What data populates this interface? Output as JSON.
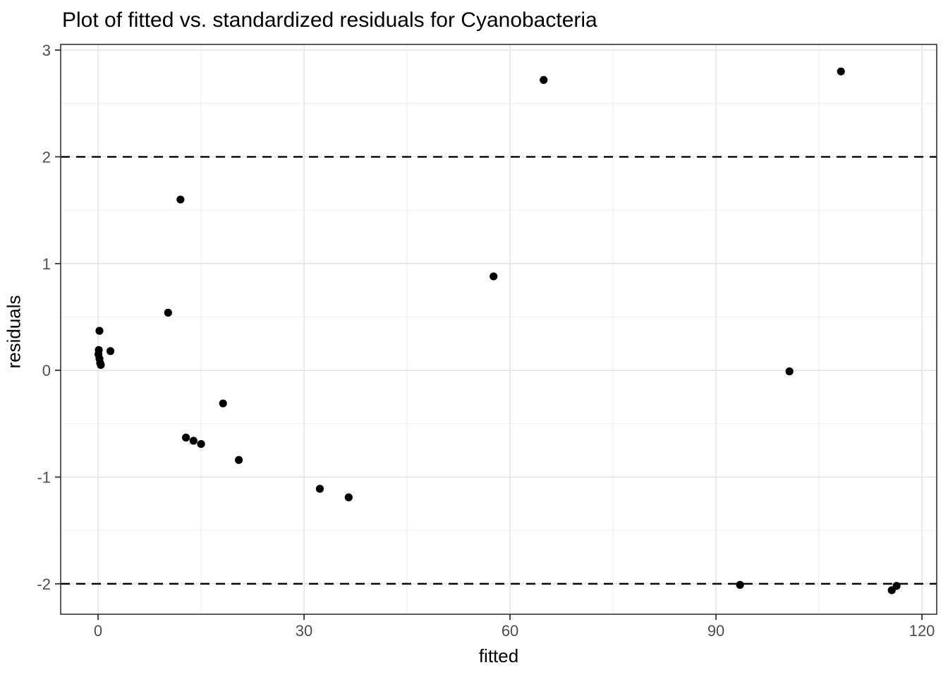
{
  "title": "Plot of fitted vs. standardized residuals for Cyanobacteria",
  "colors": {
    "background": "#ffffff",
    "panel_border": "#333333",
    "grid_major": "#e2e2e2",
    "grid_minor": "#efefef",
    "tick_mark": "#333333",
    "tick_label": "#4d4d4d",
    "axis_title": "#000000",
    "point": "#000000",
    "reference_line": "#000000"
  },
  "chart_data": {
    "type": "scatter",
    "title": "Plot of fitted vs. standardized residuals for Cyanobacteria",
    "xlabel": "fitted",
    "ylabel": "residuals",
    "xlim": [
      -5.45,
      122.15
    ],
    "ylim": [
      -2.285,
      3.053
    ],
    "x_ticks": [
      0,
      30,
      60,
      90,
      120
    ],
    "y_ticks": [
      -2,
      -1,
      0,
      1,
      2,
      3
    ],
    "x_minor_gridlines": [
      15,
      45,
      75,
      105
    ],
    "y_minor_gridlines": [
      -1.5,
      -0.5,
      0.5,
      1.5,
      2.5
    ],
    "grid": "major+minor",
    "legend": "none",
    "reference_lines": [
      {
        "y": 2,
        "style": "dashed"
      },
      {
        "y": -2,
        "style": "dashed"
      }
    ],
    "points": [
      [
        0.05,
        0.15
      ],
      [
        0.1,
        0.19
      ],
      [
        0.2,
        0.11
      ],
      [
        0.3,
        0.07
      ],
      [
        0.4,
        0.05
      ],
      [
        0.2,
        0.37
      ],
      [
        1.8,
        0.18
      ],
      [
        10.2,
        0.54
      ],
      [
        12.0,
        1.6
      ],
      [
        12.8,
        -0.63
      ],
      [
        13.9,
        -0.66
      ],
      [
        15.0,
        -0.69
      ],
      [
        18.2,
        -0.31
      ],
      [
        20.5,
        -0.84
      ],
      [
        32.3,
        -1.11
      ],
      [
        36.5,
        -1.19
      ],
      [
        57.6,
        0.88
      ],
      [
        64.9,
        2.72
      ],
      [
        93.5,
        -2.01
      ],
      [
        100.7,
        -0.01
      ],
      [
        108.2,
        2.8
      ],
      [
        115.6,
        -2.06
      ],
      [
        116.3,
        -2.02
      ]
    ]
  }
}
